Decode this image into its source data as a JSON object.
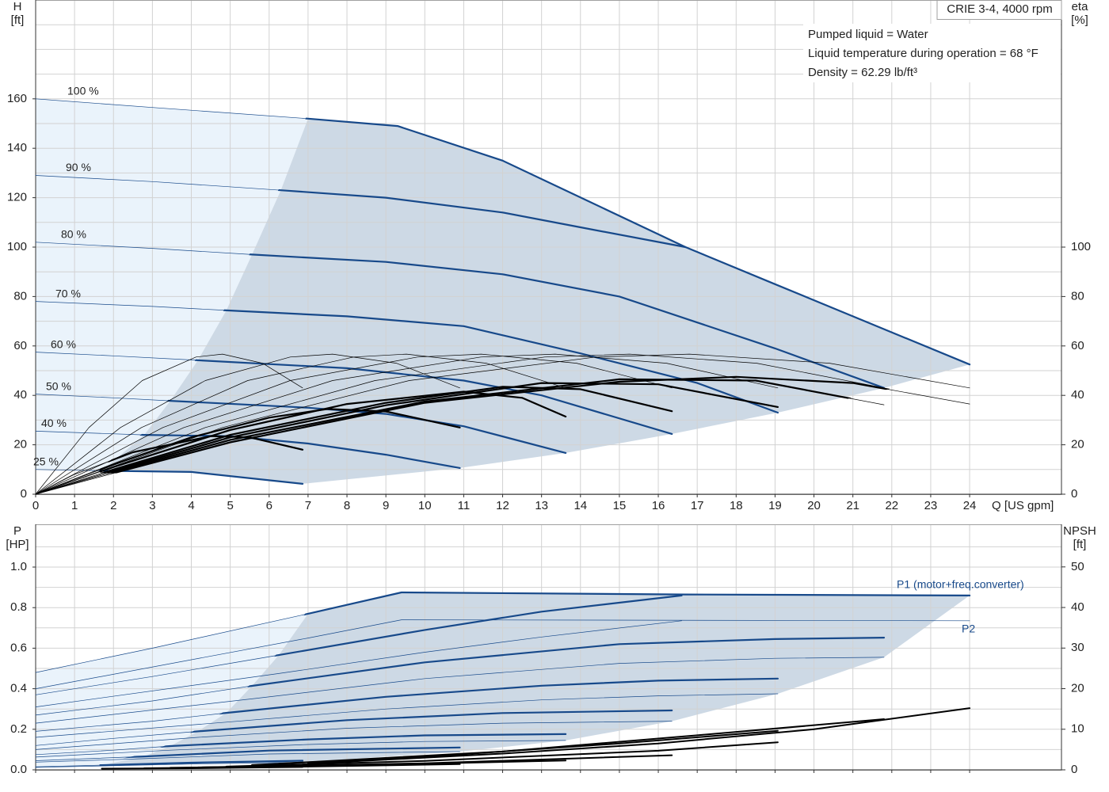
{
  "chart_data": [
    {
      "type": "line",
      "title": "CRIE 3-4, 4000 rpm",
      "notes": [
        "Pumped liquid = Water",
        "Liquid temperature during operation = 68 °F",
        "Density = 62.29 lb/ft³"
      ],
      "x_label": "Q [US gpm]",
      "y_label": "H",
      "y_unit": "[ft]",
      "y2_label": "eta",
      "y2_unit": "[%]",
      "xlim": [
        0,
        26.36
      ],
      "xticks": [
        0,
        1,
        2,
        3,
        4,
        5,
        6,
        7,
        8,
        9,
        10,
        11,
        12,
        13,
        14,
        15,
        16,
        17,
        18,
        19,
        20,
        21,
        22,
        23,
        24
      ],
      "ylim": [
        0,
        200
      ],
      "yticks": [
        0,
        20,
        40,
        60,
        80,
        100,
        120,
        140,
        160
      ],
      "ygrid": [
        10,
        30,
        50,
        70,
        90,
        110,
        130,
        150,
        170,
        180,
        190
      ],
      "y2lim": [
        0,
        200
      ],
      "y2ticks": [
        0,
        20,
        40,
        60,
        80,
        100
      ],
      "grid": true,
      "region": {
        "color": "#cdd9e5",
        "extension_color": "#eaf3fb",
        "x": [
          7,
          9.3,
          12,
          16.7,
          19,
          24,
          21.8,
          19.07,
          16.35,
          13.62,
          10.9,
          6.86,
          4,
          1.7,
          2.79,
          3.46,
          4.17,
          4.9,
          5.56,
          6.3
        ],
        "values": [
          152,
          149,
          135,
          100,
          85,
          52.5,
          43,
          33,
          24.4,
          16.7,
          10.6,
          4.2,
          9,
          9.5,
          24,
          37.8,
          54.2,
          74.4,
          97,
          123
        ]
      },
      "series": [
        {
          "name": "100 %",
          "color": "#17498a",
          "x": [
            0,
            3,
            7,
            9.3,
            12,
            16.7,
            19,
            24
          ],
          "values": [
            160,
            156.5,
            152,
            149,
            135,
            100,
            85,
            52.5
          ]
        },
        {
          "name": "90 %",
          "color": "#17498a",
          "x": [
            0,
            3,
            6.3,
            9,
            12,
            14,
            16.7
          ],
          "values": [
            129,
            126.5,
            123,
            120,
            114,
            108,
            100
          ]
        },
        {
          "name": "80 %",
          "color": "#17498a",
          "x": [
            0,
            3,
            5.56,
            9,
            12,
            15,
            19,
            21.8
          ],
          "values": [
            102,
            99.5,
            97,
            94,
            89,
            80,
            59,
            43
          ]
        },
        {
          "name": "70 %",
          "color": "#17498a",
          "x": [
            0,
            3,
            4.9,
            8,
            11,
            14,
            17,
            19.07
          ],
          "values": [
            78,
            76,
            74.4,
            72,
            68,
            57,
            45,
            33
          ]
        },
        {
          "name": "60 %",
          "color": "#17498a",
          "x": [
            0,
            2,
            4.17,
            8,
            11,
            13,
            16.35
          ],
          "values": [
            57.5,
            56,
            54.2,
            51,
            46,
            40,
            24.4
          ]
        },
        {
          "name": "50 %",
          "color": "#17498a",
          "x": [
            0,
            2,
            3.46,
            7,
            9,
            11,
            13.62
          ],
          "values": [
            40.5,
            39,
            37.8,
            35,
            32.5,
            27.5,
            16.7
          ]
        },
        {
          "name": "40 %",
          "color": "#17498a",
          "x": [
            0,
            2.79,
            5,
            7,
            9,
            10.9
          ],
          "values": [
            25.5,
            24,
            23.5,
            20.5,
            16,
            10.6
          ]
        },
        {
          "name": "25 %",
          "color": "#17498a",
          "x": [
            0,
            1.7,
            4,
            6.86
          ],
          "values": [
            10,
            9.5,
            9,
            4.2
          ]
        },
        {
          "color": "#000000",
          "axis": "y2",
          "x": [
            0,
            2,
            5,
            10,
            15,
            18,
            21,
            24
          ],
          "values": [
            0,
            8.5,
            21,
            37,
            45.5,
            47.5,
            45,
            36.5
          ]
        },
        {
          "color": "#000000",
          "axis": "y2",
          "x": [
            0,
            2,
            5,
            10,
            15,
            18.5,
            21.8
          ],
          "values": [
            0,
            9,
            22,
            37.5,
            46.5,
            46,
            36.2
          ]
        },
        {
          "color": "#000000",
          "axis": "y2",
          "x": [
            0,
            2,
            5,
            9,
            13,
            16,
            19.07
          ],
          "values": [
            0,
            9.5,
            23,
            36,
            45,
            44.5,
            35.3
          ]
        },
        {
          "color": "#000000",
          "axis": "y2",
          "x": [
            0,
            2,
            5,
            9,
            12,
            14,
            16.35
          ],
          "values": [
            0,
            10,
            24,
            37,
            43.5,
            42.5,
            33.6
          ]
        },
        {
          "color": "#000000",
          "axis": "y2",
          "x": [
            0,
            2,
            5,
            8,
            11,
            12.5,
            13.62
          ],
          "values": [
            0,
            11,
            26,
            36.5,
            41.5,
            39,
            31.4
          ]
        },
        {
          "color": "#000000",
          "axis": "y2",
          "x": [
            0,
            2,
            4,
            6,
            7.5,
            9,
            10.9
          ],
          "values": [
            0,
            12,
            23,
            31,
            34.5,
            33.5,
            27
          ]
        },
        {
          "color": "#000000",
          "axis": "y2",
          "x": [
            0,
            1,
            2.5,
            4.5,
            5.5,
            6.86
          ],
          "values": [
            0,
            8,
            17,
            23.5,
            23,
            18
          ]
        },
        {
          "color": "#000000",
          "axis": "y2",
          "line": "thin",
          "x": [
            0,
            4.8,
            9.6,
            14.4,
            16.8,
            20.4,
            24
          ],
          "values": [
            0,
            27,
            46,
            55.5,
            56.7,
            53,
            43
          ]
        },
        {
          "color": "#000000",
          "axis": "y2",
          "line": "thin",
          "x": [
            0,
            4.36,
            8.72,
            13.08,
            15.26,
            18.53,
            21.8
          ],
          "values": [
            0,
            27,
            46,
            55.5,
            56.7,
            53,
            43
          ]
        },
        {
          "color": "#000000",
          "axis": "y2",
          "line": "thin",
          "x": [
            0,
            3.81,
            7.63,
            11.44,
            13.35,
            16.21,
            19.07
          ],
          "values": [
            0,
            27,
            46,
            55.5,
            56.7,
            53,
            43
          ]
        },
        {
          "color": "#000000",
          "axis": "y2",
          "line": "thin",
          "x": [
            0,
            3.27,
            6.54,
            9.81,
            11.45,
            13.9,
            16.35
          ],
          "values": [
            0,
            27,
            46,
            55.5,
            56.7,
            53,
            43
          ]
        },
        {
          "color": "#000000",
          "axis": "y2",
          "line": "thin",
          "x": [
            0,
            2.72,
            5.45,
            8.17,
            9.53,
            11.58,
            13.62
          ],
          "values": [
            0,
            27,
            46,
            55.5,
            56.7,
            53,
            43
          ]
        },
        {
          "color": "#000000",
          "axis": "y2",
          "line": "thin",
          "x": [
            0,
            2.18,
            4.36,
            6.54,
            7.63,
            9.27,
            10.9
          ],
          "values": [
            0,
            27,
            46,
            55.5,
            56.7,
            53,
            43
          ]
        },
        {
          "color": "#000000",
          "axis": "y2",
          "line": "thin",
          "x": [
            0,
            1.37,
            2.74,
            4.12,
            4.8,
            5.83,
            6.86
          ],
          "values": [
            0,
            27,
            46,
            55.5,
            56.7,
            53,
            43
          ]
        }
      ]
    },
    {
      "type": "line",
      "y_label": "P",
      "y_unit": "[HP]",
      "y2_label": "NPSH",
      "y2_unit": "[ft]",
      "xlim": [
        0,
        26.36
      ],
      "xticks": [
        0,
        1,
        2,
        3,
        4,
        5,
        6,
        7,
        8,
        9,
        10,
        11,
        12,
        13,
        14,
        15,
        16,
        17,
        18,
        19,
        20,
        21,
        22,
        23,
        24
      ],
      "ylim": [
        0,
        1.211
      ],
      "yticks": [
        {
          "value": 0,
          "label": "0.0"
        },
        {
          "value": 0.2,
          "label": "0.2"
        },
        {
          "value": 0.4,
          "label": "0.4"
        },
        {
          "value": 0.6,
          "label": "0.6"
        },
        {
          "value": 0.8,
          "label": "0.8"
        },
        {
          "value": 1,
          "label": "1.0"
        }
      ],
      "ygrid": [
        0.1,
        0.3,
        0.5,
        0.7,
        0.9,
        1.1
      ],
      "y2lim": [
        0,
        60.5
      ],
      "y2ticks": [
        0,
        10,
        20,
        30,
        40,
        50
      ],
      "grid": true,
      "region": {
        "color": "#cdd9e5",
        "extension_color": "#eaf3fb",
        "x": [
          7,
          9.4,
          24,
          21.8,
          19.07,
          16.35,
          13.62,
          10.9,
          6.86,
          1.7,
          2.79,
          3.46,
          4.17,
          4.9,
          5.56,
          6.25
        ],
        "values": [
          0.77,
          0.875,
          0.86,
          0.555,
          0.375,
          0.24,
          0.145,
          0.09,
          0.037,
          0.023,
          0.066,
          0.117,
          0.19,
          0.281,
          0.414,
          0.566
        ]
      },
      "series": [
        {
          "name": "P1 (motor+freq.converter)",
          "color": "#17498a",
          "x": [
            0,
            3,
            7,
            9.4,
            16.7,
            24
          ],
          "values": [
            0.48,
            0.6,
            0.77,
            0.875,
            0.865,
            0.86
          ]
        },
        {
          "color": "#17498a",
          "x": [
            0,
            3,
            6.25,
            10,
            13,
            16.6
          ],
          "values": [
            0.37,
            0.46,
            0.566,
            0.69,
            0.78,
            0.86
          ]
        },
        {
          "color": "#17498a",
          "x": [
            0,
            3,
            5.56,
            10,
            15,
            19,
            21.8
          ],
          "values": [
            0.27,
            0.34,
            0.414,
            0.53,
            0.62,
            0.645,
            0.652
          ]
        },
        {
          "color": "#17498a",
          "x": [
            0,
            3,
            4.9,
            9,
            13,
            16,
            19.07
          ],
          "values": [
            0.19,
            0.24,
            0.281,
            0.36,
            0.415,
            0.44,
            0.45
          ]
        },
        {
          "color": "#17498a",
          "x": [
            0,
            2,
            4.17,
            8,
            12,
            16.35
          ],
          "values": [
            0.12,
            0.155,
            0.19,
            0.245,
            0.28,
            0.293
          ]
        },
        {
          "color": "#17498a",
          "x": [
            0,
            2,
            3.46,
            7,
            10,
            13.62
          ],
          "values": [
            0.075,
            0.097,
            0.117,
            0.15,
            0.17,
            0.176
          ]
        },
        {
          "color": "#17498a",
          "x": [
            0,
            2.79,
            6,
            10.9
          ],
          "values": [
            0.045,
            0.066,
            0.095,
            0.11
          ]
        },
        {
          "color": "#17498a",
          "x": [
            0,
            1.7,
            4,
            6.86
          ],
          "values": [
            0.015,
            0.023,
            0.035,
            0.045
          ]
        },
        {
          "name": "P2",
          "color": "#17498a",
          "line": "thin",
          "x": [
            0,
            7,
            9.4,
            24
          ],
          "values": [
            0.4,
            0.65,
            0.74,
            0.735
          ]
        },
        {
          "color": "#17498a",
          "line": "thin",
          "x": [
            0,
            6.25,
            10,
            13,
            16.6
          ],
          "values": [
            0.31,
            0.475,
            0.58,
            0.655,
            0.735
          ]
        },
        {
          "color": "#17498a",
          "line": "thin",
          "x": [
            0,
            5.56,
            10,
            15,
            19,
            21.8
          ],
          "values": [
            0.23,
            0.35,
            0.45,
            0.525,
            0.55,
            0.555
          ]
        },
        {
          "color": "#17498a",
          "line": "thin",
          "x": [
            0,
            4.9,
            9,
            13,
            16,
            19.07
          ],
          "values": [
            0.16,
            0.235,
            0.3,
            0.345,
            0.365,
            0.375
          ]
        },
        {
          "color": "#17498a",
          "line": "thin",
          "x": [
            0,
            4.17,
            8,
            12,
            16.35
          ],
          "values": [
            0.1,
            0.16,
            0.205,
            0.23,
            0.24
          ]
        },
        {
          "color": "#17498a",
          "line": "thin",
          "x": [
            0,
            3.46,
            7,
            10,
            13.62
          ],
          "values": [
            0.063,
            0.097,
            0.125,
            0.14,
            0.145
          ]
        },
        {
          "color": "#17498a",
          "line": "thin",
          "x": [
            0,
            2.79,
            6,
            10.9
          ],
          "values": [
            0.038,
            0.055,
            0.078,
            0.09
          ]
        },
        {
          "color": "#17498a",
          "line": "thin",
          "x": [
            0,
            1.7,
            4,
            6.86
          ],
          "values": [
            0.012,
            0.019,
            0.029,
            0.037
          ]
        },
        {
          "color": "#000000",
          "axis": "y2",
          "line": "thick",
          "x": [
            7,
            12,
            16,
            20,
            24
          ],
          "values": [
            1.5,
            4,
            6.5,
            10,
            15.2
          ]
        },
        {
          "color": "#000000",
          "axis": "y2",
          "line": "thick",
          "x": [
            6.25,
            12,
            17,
            21.8
          ],
          "values": [
            1.5,
            4.5,
            8.5,
            12.5
          ]
        },
        {
          "color": "#000000",
          "axis": "y2",
          "line": "thick",
          "x": [
            5.56,
            10,
            15,
            19.07
          ],
          "values": [
            1.2,
            3.2,
            6.5,
            9.6
          ]
        },
        {
          "color": "#000000",
          "axis": "y2",
          "line": "thick",
          "x": [
            4.9,
            10,
            16,
            19.07
          ],
          "values": [
            0.8,
            2.2,
            4.7,
            6.8
          ]
        },
        {
          "color": "#000000",
          "axis": "y2",
          "line": "thick",
          "x": [
            4.17,
            10,
            16.35
          ],
          "values": [
            0.6,
            1.6,
            3.6
          ]
        },
        {
          "color": "#000000",
          "axis": "y2",
          "line": "thick",
          "x": [
            3.46,
            8,
            13.62
          ],
          "values": [
            0.5,
            1.1,
            2.3
          ]
        },
        {
          "color": "#000000",
          "axis": "y2",
          "line": "thick",
          "x": [
            2.79,
            7,
            10.9
          ],
          "values": [
            0.4,
            0.8,
            1.4
          ]
        },
        {
          "color": "#000000",
          "axis": "y2",
          "line": "thick",
          "x": [
            1.7,
            4,
            6.86
          ],
          "values": [
            0.3,
            0.4,
            0.7
          ]
        }
      ]
    }
  ]
}
